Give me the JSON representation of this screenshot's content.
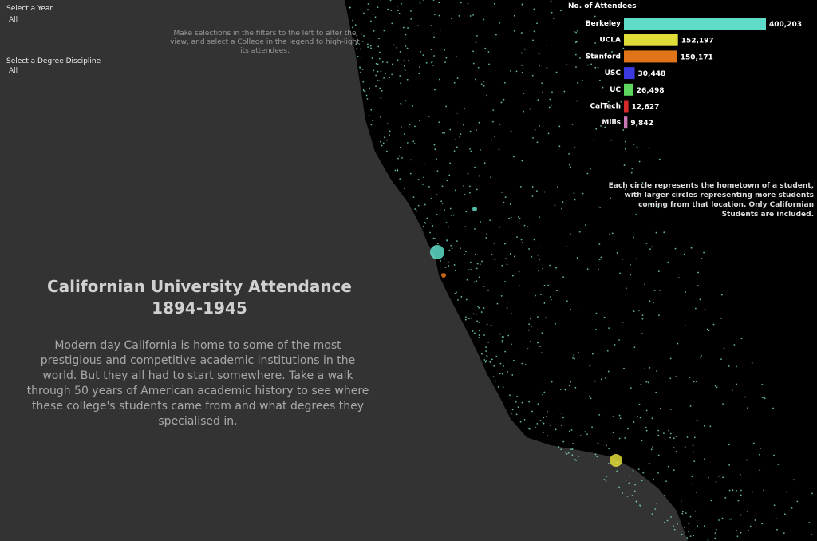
{
  "filters": {
    "year": {
      "label": "Select a Year",
      "value": "All"
    },
    "discipline": {
      "label": "Select a Degree Discipline",
      "value": "All"
    }
  },
  "hint": "Make selections in the filters to the left to alter the view, and select a College in the legend to high-light its attendees.",
  "title_line1": "Californian University Attendance",
  "title_line2": "1894-1945",
  "intro": "Modern day California is home to some of the most prestigious and competitive academic institutions in the world. But they all had to start somewhere. Take a walk through 50 years of American academic history to see where these college's students came from and what degrees they specialised in.",
  "map_note": "Each circle represents the hometown of a student, with larger circles representing more students coming from that location. Only Californian Students are included.",
  "colors": {
    "background": "#333333",
    "land": "#000000",
    "dots": "#7fe0c8"
  },
  "chart_data": {
    "type": "bar",
    "orientation": "horizontal",
    "title": "No. of Attendees",
    "categories": [
      "Berkeley",
      "UCLA",
      "Stanford",
      "USC",
      "UC",
      "CalTech",
      "Mills"
    ],
    "values": [
      400203,
      152197,
      150171,
      30448,
      26498,
      12627,
      9842
    ],
    "labels": [
      "400,203",
      "152,197",
      "150,171",
      "30,448",
      "26,498",
      "12,627",
      "9,842"
    ],
    "colors": [
      "#5fdcc8",
      "#e0dc3a",
      "#e07418",
      "#3a3ae0",
      "#5cd65c",
      "#d62a2a",
      "#c878b4"
    ]
  }
}
